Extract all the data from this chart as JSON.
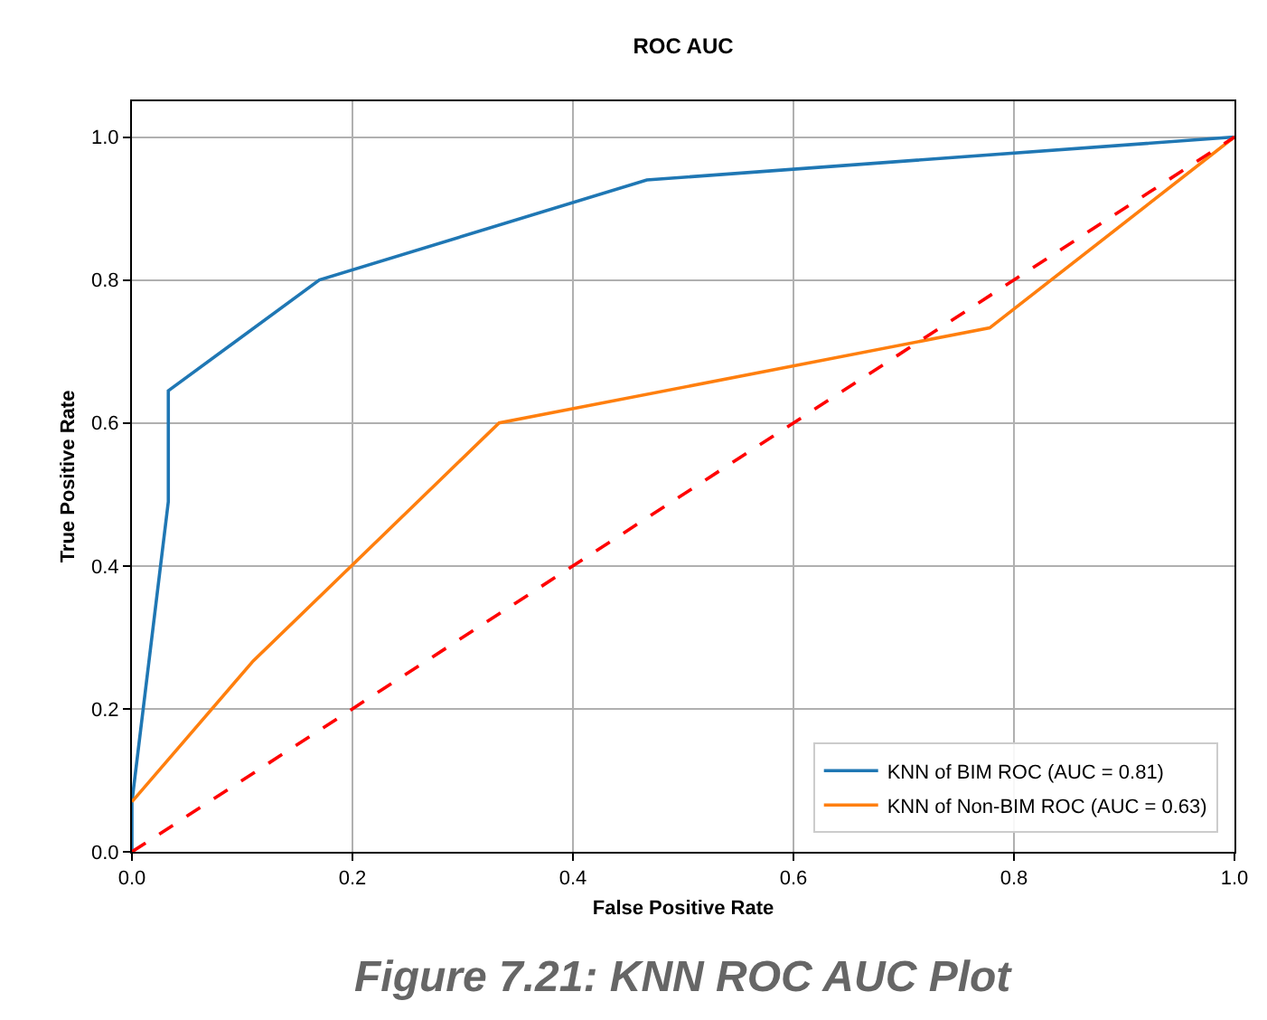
{
  "chart_data": {
    "type": "line",
    "title": "ROC AUC",
    "xlabel": "False Positive Rate",
    "ylabel": "True Positive Rate",
    "xlim": [
      0,
      1
    ],
    "ylim": [
      0,
      1.05
    ],
    "xticks": [
      {
        "value": 0,
        "label": "0.0"
      },
      {
        "value": 0.2,
        "label": "0.2"
      },
      {
        "value": 0.4,
        "label": "0.4"
      },
      {
        "value": 0.6,
        "label": "0.6"
      },
      {
        "value": 0.8,
        "label": "0.8"
      },
      {
        "value": 1,
        "label": "1.0"
      }
    ],
    "yticks": [
      {
        "value": 0,
        "label": "0.0"
      },
      {
        "value": 0.2,
        "label": "0.2"
      },
      {
        "value": 0.4,
        "label": "0.4"
      },
      {
        "value": 0.6,
        "label": "0.6"
      },
      {
        "value": 0.8,
        "label": "0.8"
      },
      {
        "value": 1,
        "label": "1.0"
      }
    ],
    "grid": true,
    "legend": "bottom right",
    "marker": "none",
    "series": [
      {
        "name": "KNN of BIM ROC (AUC = 0.81)",
        "color": "#1f77b4",
        "x": [
          0,
          0,
          0.033,
          0.033,
          0.17,
          0.467,
          1
        ],
        "values": [
          0,
          0.07,
          0.49,
          0.645,
          0.8,
          0.94,
          1
        ]
      },
      {
        "name": "KNN of Non-BIM ROC (AUC = 0.63)",
        "color": "#ff7f0e",
        "x": [
          0,
          0.11,
          0.333,
          0.778,
          1
        ],
        "values": [
          0.07,
          0.267,
          0.6,
          0.733,
          1
        ]
      },
      {
        "color": "#ff0000",
        "x": [
          0,
          1
        ],
        "values": [
          0,
          1
        ],
        "line_style": "dashed"
      }
    ],
    "annotations": [
      "Figure 7.21: KNN ROC AUC Plot"
    ]
  }
}
